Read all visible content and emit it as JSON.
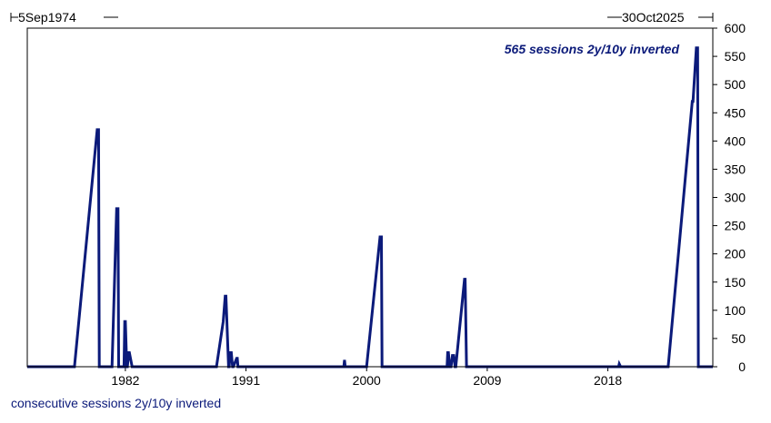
{
  "chart_data": {
    "type": "line",
    "range_start": "5Sep1974",
    "range_end": "30Oct2025",
    "annotation": "565 sessions 2y/10y inverted",
    "series_label": "consecutive sessions 2y/10y inverted",
    "x_ticks": [
      "1982",
      "1991",
      "2000",
      "2009",
      "2018"
    ],
    "x_tick_years": [
      1982,
      1991,
      2000,
      2009,
      2018
    ],
    "y_ticks": [
      0,
      50,
      100,
      150,
      200,
      250,
      300,
      350,
      400,
      450,
      500,
      550,
      600
    ],
    "xlim": [
      1974.68,
      2025.83
    ],
    "ylim": [
      0,
      600
    ],
    "grid": false,
    "line_color": "#0b1a7a",
    "series": [
      {
        "x": [
          1974.68,
          1978.2,
          1979.9,
          1980.0,
          1980.05,
          1980.5,
          1981.0,
          1981.35,
          1981.45,
          1981.5,
          1981.7,
          1981.9,
          1981.95,
          1982.0,
          1982.1,
          1982.15,
          1982.25,
          1982.3,
          1982.5,
          1982.6,
          1982.7,
          1988.8,
          1989.3,
          1989.45,
          1989.5,
          1989.7,
          1989.75,
          1989.8,
          1989.9,
          1990.0,
          1990.05,
          1990.3,
          1990.35,
          1990.4,
          1998.3,
          1998.35,
          1998.4,
          2000.0,
          2001.0,
          2001.1,
          2001.15,
          2006.0,
          2006.05,
          2006.1,
          2006.2,
          2006.3,
          2006.4,
          2006.5,
          2006.6,
          2006.65,
          2007.3,
          2007.35,
          2007.45,
          2007.5,
          2018.8,
          2018.85,
          2018.95,
          2022.5,
          2024.3,
          2024.35,
          2024.6,
          2024.7,
          2024.75,
          2025.83
        ],
        "y": [
          0,
          0,
          420,
          420,
          0,
          0,
          0,
          280,
          280,
          0,
          0,
          0,
          80,
          80,
          0,
          0,
          25,
          25,
          0,
          0,
          0,
          0,
          80,
          125,
          125,
          0,
          0,
          25,
          25,
          0,
          0,
          15,
          15,
          0,
          0,
          12,
          0,
          0,
          230,
          230,
          0,
          0,
          25,
          25,
          0,
          0,
          20,
          20,
          0,
          0,
          155,
          155,
          0,
          0,
          0,
          5,
          0,
          0,
          470,
          470,
          565,
          565,
          0,
          0
        ]
      }
    ]
  }
}
